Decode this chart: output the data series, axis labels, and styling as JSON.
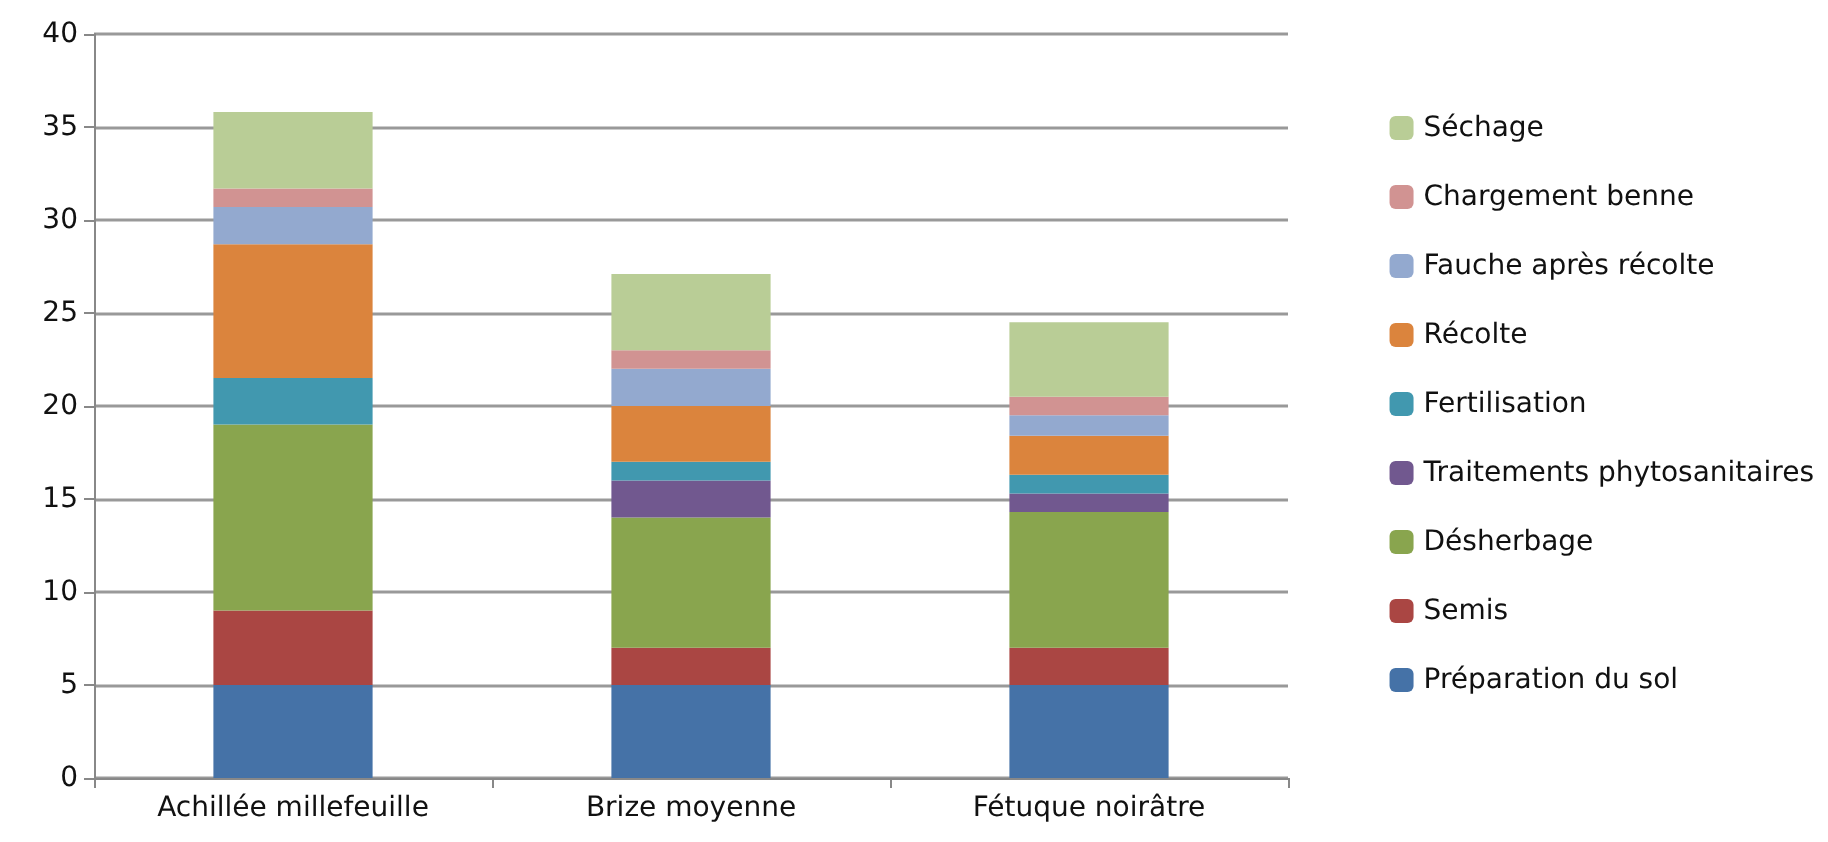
{
  "chart_data": {
    "type": "bar",
    "stacked": true,
    "categories": [
      "Achillée millefeuille",
      "Brize moyenne",
      "Fétuque noirâtre"
    ],
    "series": [
      {
        "name": "Préparation du sol",
        "color": "#4572a7",
        "values": [
          5,
          5,
          5
        ]
      },
      {
        "name": "Semis",
        "color": "#aa4643",
        "values": [
          4,
          2,
          2
        ]
      },
      {
        "name": "Désherbage",
        "color": "#89a54e",
        "values": [
          10,
          7,
          7.3
        ]
      },
      {
        "name": "Traitements phytosanitaires",
        "color": "#71588f",
        "values": [
          0,
          2,
          1
        ]
      },
      {
        "name": "Fertilisation",
        "color": "#4198af",
        "values": [
          2.5,
          1,
          1
        ]
      },
      {
        "name": "Récolte",
        "color": "#db843d",
        "values": [
          7.2,
          3,
          2.1
        ]
      },
      {
        "name": "Fauche après récolte",
        "color": "#93a9cf",
        "values": [
          2,
          2,
          1.1
        ]
      },
      {
        "name": "Chargement benne",
        "color": "#d19392",
        "values": [
          1,
          1,
          1
        ]
      },
      {
        "name": "Séchage",
        "color": "#b9cd96",
        "values": [
          4.1,
          4.1,
          4
        ]
      }
    ],
    "ylim": [
      0,
      40
    ],
    "yticks": [
      0,
      5,
      10,
      15,
      20,
      25,
      30,
      35,
      40
    ],
    "grid": "y",
    "legend": "right"
  }
}
